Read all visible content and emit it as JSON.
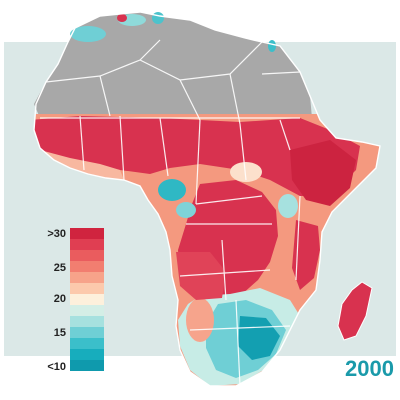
{
  "map": {
    "region": "Africa",
    "year": "2000",
    "colors": {
      "sea": "#dbe8e7",
      "no_data": "#a8a8a8",
      "borders": "#ffffff",
      "hot": "#d8324f",
      "warm": "#f08a78",
      "neutral": "#fbe8d6",
      "cool": "#7fd3d8",
      "cold": "#11a3b3"
    }
  },
  "legend": {
    "labels": [
      ">30",
      "25",
      "20",
      "15",
      "<10"
    ],
    "swatches": [
      "#d0243f",
      "#e03e52",
      "#ea5c5e",
      "#f27e70",
      "#f7a38a",
      "#fcc9ac",
      "#fdf0dc",
      "#d4eee6",
      "#a6e1df",
      "#6fcfd5",
      "#3bbfca",
      "#17adbd",
      "#0f9aad"
    ]
  }
}
